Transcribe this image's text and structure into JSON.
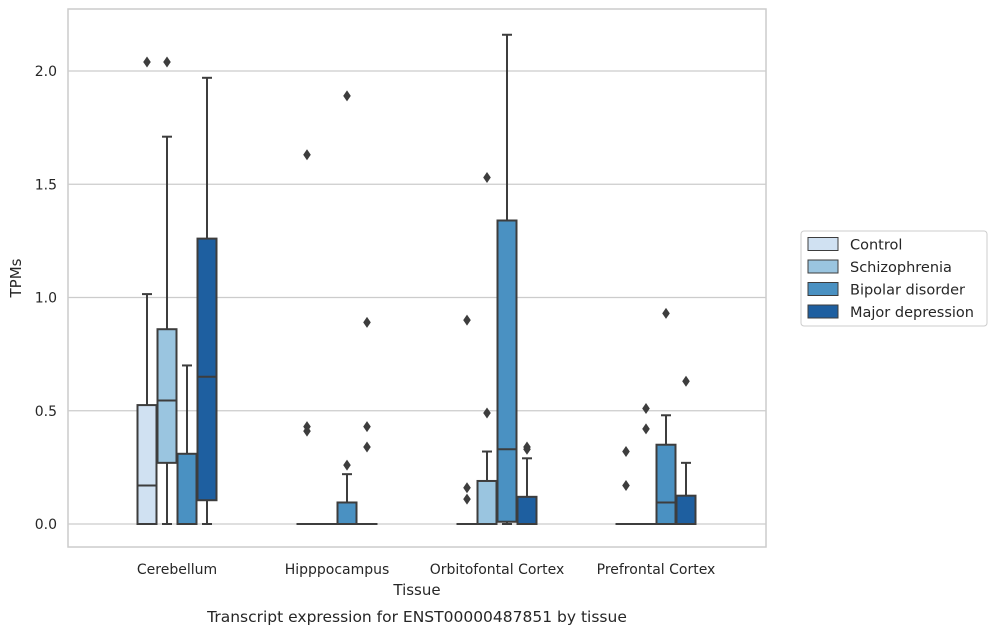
{
  "chart_data": {
    "type": "box",
    "xlabel": "Tissue",
    "ylabel": "TPMs",
    "caption": "Transcript expression for ENST00000487851 by tissue",
    "ylim": [
      -0.1,
      2.27
    ],
    "yticks": [
      "0.0",
      "0.5",
      "1.0",
      "1.5",
      "2.0"
    ],
    "ytick_values": [
      0.0,
      0.5,
      1.0,
      1.5,
      2.0
    ],
    "grid": "horizontal",
    "legend_position": "right",
    "categories": [
      "Cerebellum",
      "Hipppocampus",
      "Orbitofontal Cortex",
      "Prefrontal Cortex"
    ],
    "series": [
      {
        "name": "Control",
        "color": "#d0e1f2"
      },
      {
        "name": "Schizophrenia",
        "color": "#9ac5e0"
      },
      {
        "name": "Bipolar disorder",
        "color": "#4a91c2"
      },
      {
        "name": "Major depression",
        "color": "#1e5fa0"
      }
    ],
    "boxes": [
      [
        {
          "q1": 0.0,
          "median": 0.17,
          "q3": 0.525,
          "lo": 0.0,
          "hi": 1.015,
          "outliers": [
            2.04
          ]
        },
        {
          "q1": 0.27,
          "median": 0.545,
          "q3": 0.86,
          "lo": 0.0,
          "hi": 1.71,
          "outliers": [
            2.04
          ]
        },
        {
          "q1": 0.0,
          "median": 0.0,
          "q3": 0.31,
          "lo": 0.0,
          "hi": 0.7,
          "outliers": []
        },
        {
          "q1": 0.105,
          "median": 0.65,
          "q3": 1.26,
          "lo": 0.0,
          "hi": 1.97,
          "outliers": []
        }
      ],
      [
        {
          "q1": 0.0,
          "median": 0.0,
          "q3": 0.0,
          "lo": 0.0,
          "hi": 0.0,
          "outliers": [
            0.41,
            0.43,
            1.63
          ]
        },
        {
          "q1": 0.0,
          "median": 0.0,
          "q3": 0.0,
          "lo": 0.0,
          "hi": 0.0,
          "outliers": []
        },
        {
          "q1": 0.0,
          "median": 0.0,
          "q3": 0.095,
          "lo": 0.0,
          "hi": 0.22,
          "outliers": [
            0.26,
            1.89
          ]
        },
        {
          "q1": 0.0,
          "median": 0.0,
          "q3": 0.0,
          "lo": 0.0,
          "hi": 0.0,
          "outliers": [
            0.34,
            0.43,
            0.89
          ]
        }
      ],
      [
        {
          "q1": 0.0,
          "median": 0.0,
          "q3": 0.0,
          "lo": 0.0,
          "hi": 0.0,
          "outliers": [
            0.11,
            0.16,
            0.9
          ]
        },
        {
          "q1": 0.0,
          "median": 0.0,
          "q3": 0.19,
          "lo": 0.0,
          "hi": 0.32,
          "outliers": [
            0.49,
            1.53
          ]
        },
        {
          "q1": 0.01,
          "median": 0.33,
          "q3": 1.34,
          "lo": 0.0,
          "hi": 2.16,
          "outliers": []
        },
        {
          "q1": 0.0,
          "median": 0.0,
          "q3": 0.12,
          "lo": 0.0,
          "hi": 0.29,
          "outliers": [
            0.33,
            0.34
          ]
        }
      ],
      [
        {
          "q1": 0.0,
          "median": 0.0,
          "q3": 0.0,
          "lo": 0.0,
          "hi": 0.0,
          "outliers": [
            0.17,
            0.32
          ]
        },
        {
          "q1": 0.0,
          "median": 0.0,
          "q3": 0.0,
          "lo": 0.0,
          "hi": 0.0,
          "outliers": [
            0.42,
            0.51
          ]
        },
        {
          "q1": 0.0,
          "median": 0.095,
          "q3": 0.35,
          "lo": 0.0,
          "hi": 0.48,
          "outliers": [
            0.93
          ]
        },
        {
          "q1": 0.0,
          "median": 0.0,
          "q3": 0.125,
          "lo": 0.0,
          "hi": 0.27,
          "outliers": [
            0.63
          ]
        }
      ]
    ]
  }
}
